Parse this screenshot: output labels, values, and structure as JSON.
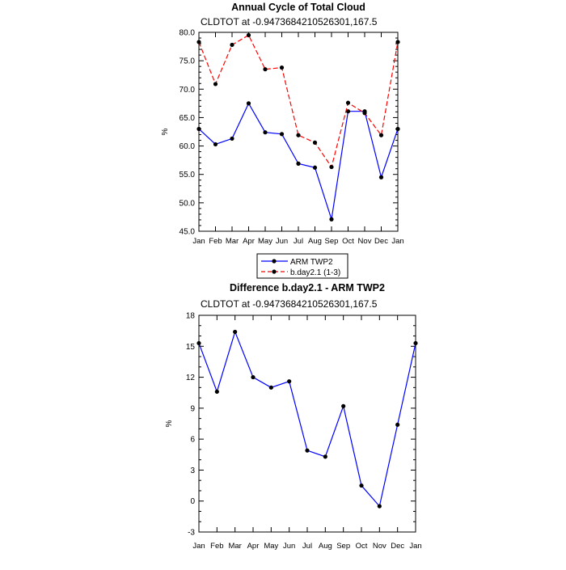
{
  "chart_data": [
    {
      "type": "line",
      "title": "Annual Cycle of Total Cloud",
      "subtitle": "CLDTOT at -0.9473684210526301,167.5",
      "ylabel": "%",
      "ylim": [
        45.0,
        80.0
      ],
      "yticks": [
        "45.0",
        "50.0",
        "55.0",
        "60.0",
        "65.0",
        "70.0",
        "75.0",
        "80.0"
      ],
      "categories": [
        "Jan",
        "Feb",
        "Mar",
        "Apr",
        "May",
        "Jun",
        "Jul",
        "Aug",
        "Sep",
        "Oct",
        "Nov",
        "Dec",
        "Jan"
      ],
      "series": [
        {
          "name": "ARM TWP2",
          "color": "#0000ff",
          "dash": "solid",
          "values": [
            63.0,
            60.3,
            61.3,
            67.5,
            62.4,
            62.1,
            56.9,
            56.2,
            47.1,
            66.1,
            66.1,
            54.5,
            63.0
          ]
        },
        {
          "name": "b.day2.1 (1-3)",
          "color": "#ff0000",
          "dash": "dashed",
          "values": [
            78.3,
            70.9,
            77.8,
            79.5,
            73.5,
            73.8,
            61.9,
            60.6,
            56.3,
            67.6,
            65.8,
            61.9,
            78.3
          ]
        }
      ],
      "legend": "below"
    },
    {
      "type": "line",
      "title": "Difference b.day2.1 - ARM TWP2",
      "subtitle": "CLDTOT at -0.9473684210526301,167.5",
      "ylabel": "%",
      "ylim": [
        -3,
        18
      ],
      "yticks": [
        "-3",
        "0",
        "3",
        "6",
        "9",
        "12",
        "15",
        "18"
      ],
      "categories": [
        "Jan",
        "Feb",
        "Mar",
        "Apr",
        "May",
        "Jun",
        "Jul",
        "Aug",
        "Sep",
        "Oct",
        "Nov",
        "Dec",
        "Jan"
      ],
      "series": [
        {
          "color": "#0000ff",
          "dash": "solid",
          "values": [
            15.3,
            10.6,
            16.4,
            12.0,
            11.0,
            11.6,
            4.9,
            4.3,
            9.2,
            1.5,
            -0.5,
            7.4,
            15.3
          ]
        }
      ]
    }
  ]
}
